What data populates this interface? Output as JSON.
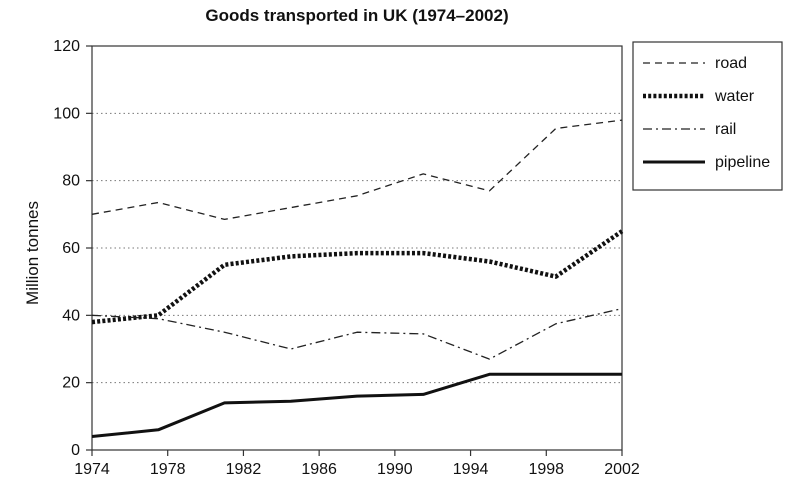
{
  "chart_data": {
    "type": "line",
    "title": "Goods transported in UK (1974–2002)",
    "xlabel": "",
    "ylabel": "Million tonnes",
    "x": [
      1974,
      1978,
      1982,
      1986,
      1990,
      1994,
      1998,
      2002
    ],
    "xlim": [
      1974,
      2002
    ],
    "ylim": [
      0,
      120
    ],
    "yticks": [
      0,
      20,
      40,
      60,
      80,
      100,
      120
    ],
    "grid": "horizontal dotted",
    "legend": "outside-right-top",
    "series": [
      {
        "name": "road",
        "style": "dashed",
        "points": [
          [
            1974,
            70
          ],
          [
            1977.5,
            73.5
          ],
          [
            1981,
            68.5
          ],
          [
            1984.5,
            72
          ],
          [
            1988,
            75.5
          ],
          [
            1991.5,
            82
          ],
          [
            1995,
            77
          ],
          [
            1998.5,
            95.5
          ],
          [
            2002,
            98
          ]
        ]
      },
      {
        "name": "water",
        "style": "dotted-bold",
        "points": [
          [
            1974,
            38
          ],
          [
            1977.5,
            40
          ],
          [
            1981,
            55
          ],
          [
            1984.5,
            57.5
          ],
          [
            1988,
            58.5
          ],
          [
            1991.5,
            58.5
          ],
          [
            1995,
            56
          ],
          [
            1998.5,
            51.5
          ],
          [
            2002,
            65
          ]
        ]
      },
      {
        "name": "rail",
        "style": "dash-dot",
        "points": [
          [
            1974,
            40
          ],
          [
            1977.5,
            39
          ],
          [
            1981,
            35
          ],
          [
            1984.5,
            30
          ],
          [
            1988,
            35
          ],
          [
            1991.5,
            34.5
          ],
          [
            1995,
            27
          ],
          [
            1998.5,
            37.5
          ],
          [
            2002,
            42
          ]
        ]
      },
      {
        "name": "pipeline",
        "style": "solid-bold",
        "points": [
          [
            1974,
            4
          ],
          [
            1977.5,
            6
          ],
          [
            1981,
            14
          ],
          [
            1984.5,
            14.5
          ],
          [
            1988,
            16
          ],
          [
            1991.5,
            16.5
          ],
          [
            1995,
            22.5
          ],
          [
            1998.5,
            22.5
          ],
          [
            2002,
            22.5
          ]
        ]
      }
    ]
  }
}
